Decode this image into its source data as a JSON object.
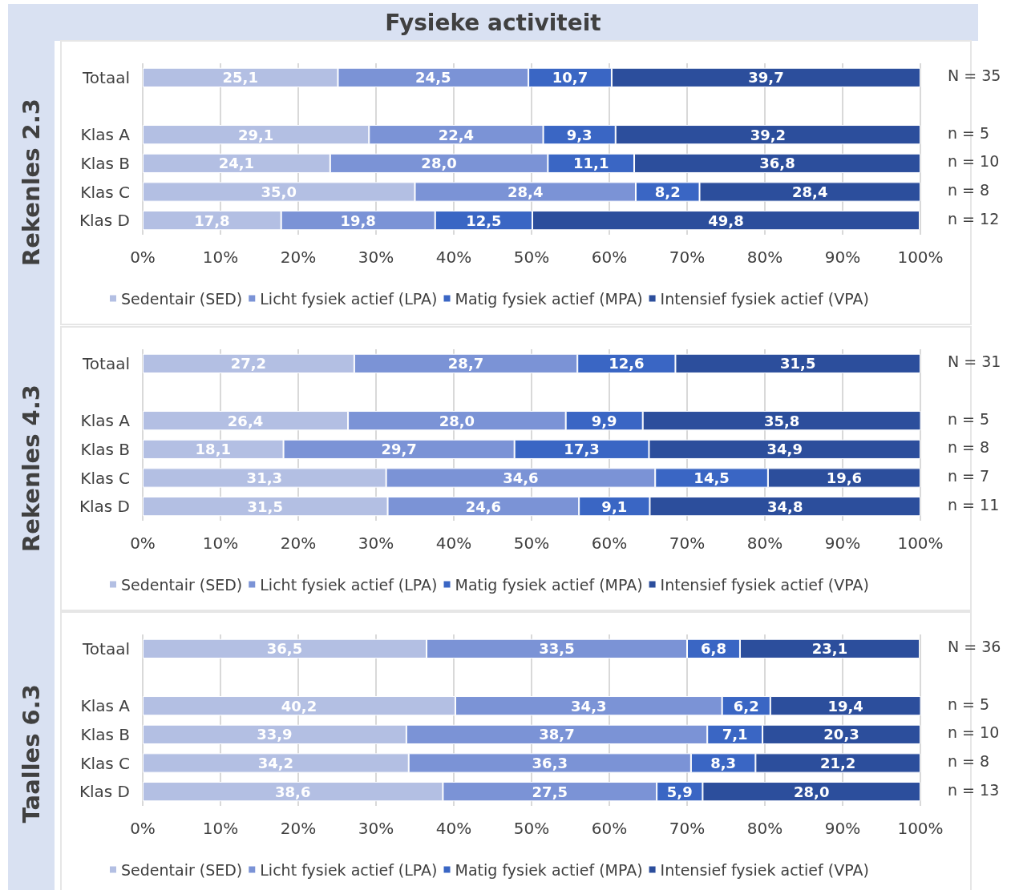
{
  "chart_data": [
    {
      "type": "bar",
      "orientation": "horizontal",
      "stacked": true,
      "title": "Fysieke activiteit",
      "ylabel": "Rekenles 2.3",
      "categories": [
        "Totaal",
        null,
        "Klas A",
        "Klas B",
        "Klas C",
        "Klas D"
      ],
      "series": [
        {
          "name": "Sedentair (SED)",
          "color": "#b3bfe3",
          "values": [
            25.1,
            null,
            29.1,
            24.1,
            35.0,
            17.8
          ],
          "value_labels": [
            "25,1",
            null,
            "29,1",
            "24,1",
            "35,0",
            "17,8"
          ]
        },
        {
          "name": "Licht fysiek actief (LPA)",
          "color": "#7b93d6",
          "values": [
            24.5,
            null,
            22.4,
            28.0,
            28.4,
            19.8
          ],
          "value_labels": [
            "24,5",
            null,
            "22,4",
            "28,0",
            "28,4",
            "19,8"
          ]
        },
        {
          "name": "Matig fysiek actief (MPA)",
          "color": "#3a66c4",
          "values": [
            10.7,
            null,
            9.3,
            11.1,
            8.2,
            12.5
          ],
          "value_labels": [
            "10,7",
            null,
            "9,3",
            "11,1",
            "8,2",
            "12,5"
          ]
        },
        {
          "name": "Intensief fysiek actief (VPA)",
          "color": "#2c4e9c",
          "values": [
            39.7,
            null,
            39.2,
            36.8,
            28.4,
            49.8
          ],
          "value_labels": [
            "39,7",
            null,
            "39,2",
            "36,8",
            "28,4",
            "49,8"
          ]
        }
      ],
      "xlim": [
        0,
        100
      ],
      "xticks": [
        {
          "value": 0,
          "label": "0%"
        },
        {
          "value": 10,
          "label": "10%"
        },
        {
          "value": 20,
          "label": "20%"
        },
        {
          "value": 30,
          "label": "30%"
        },
        {
          "value": 40,
          "label": "40%"
        },
        {
          "value": 50,
          "label": "50%"
        },
        {
          "value": 60,
          "label": "60%"
        },
        {
          "value": 70,
          "label": "70%"
        },
        {
          "value": 80,
          "label": "80%"
        },
        {
          "value": 90,
          "label": "90%"
        },
        {
          "value": 100,
          "label": "100%"
        }
      ],
      "grid": "x",
      "legend": "bottom",
      "annotations": [
        "N = 35",
        "n = 5",
        "n = 10",
        "n = 8",
        "n = 12"
      ]
    },
    {
      "type": "bar",
      "orientation": "horizontal",
      "stacked": true,
      "ylabel": "Rekenles 4.3",
      "categories": [
        "Totaal",
        null,
        "Klas A",
        "Klas B",
        "Klas C",
        "Klas D"
      ],
      "series": [
        {
          "name": "Sedentair (SED)",
          "color": "#b3bfe3",
          "values": [
            27.2,
            null,
            26.4,
            18.1,
            31.3,
            31.5
          ],
          "value_labels": [
            "27,2",
            null,
            "26,4",
            "18,1",
            "31,3",
            "31,5"
          ]
        },
        {
          "name": "Licht fysiek actief (LPA)",
          "color": "#7b93d6",
          "values": [
            28.7,
            null,
            28.0,
            29.7,
            34.6,
            24.6
          ],
          "value_labels": [
            "28,7",
            null,
            "28,0",
            "29,7",
            "34,6",
            "24,6"
          ]
        },
        {
          "name": "Matig fysiek actief (MPA)",
          "color": "#3a66c4",
          "values": [
            12.6,
            null,
            9.9,
            17.3,
            14.5,
            9.1
          ],
          "value_labels": [
            "12,6",
            null,
            "9,9",
            "17,3",
            "14,5",
            "9,1"
          ]
        },
        {
          "name": "Intensief fysiek actief (VPA)",
          "color": "#2c4e9c",
          "values": [
            31.5,
            null,
            35.8,
            34.9,
            19.6,
            34.8
          ],
          "value_labels": [
            "31,5",
            null,
            "35,8",
            "34,9",
            "19,6",
            "34,8"
          ]
        }
      ],
      "xlim": [
        0,
        100
      ],
      "xticks": [
        {
          "value": 0,
          "label": "0%"
        },
        {
          "value": 10,
          "label": "10%"
        },
        {
          "value": 20,
          "label": "20%"
        },
        {
          "value": 30,
          "label": "30%"
        },
        {
          "value": 40,
          "label": "40%"
        },
        {
          "value": 50,
          "label": "50%"
        },
        {
          "value": 60,
          "label": "60%"
        },
        {
          "value": 70,
          "label": "70%"
        },
        {
          "value": 80,
          "label": "80%"
        },
        {
          "value": 90,
          "label": "90%"
        },
        {
          "value": 100,
          "label": "100%"
        }
      ],
      "grid": "x",
      "legend": "bottom",
      "annotations": [
        "N = 31",
        "n = 5",
        "n = 8",
        "n = 7",
        "n = 11"
      ]
    },
    {
      "type": "bar",
      "orientation": "horizontal",
      "stacked": true,
      "ylabel": "Taalles 6.3",
      "categories": [
        "Totaal",
        null,
        "Klas A",
        "Klas B",
        "Klas C",
        "Klas D"
      ],
      "series": [
        {
          "name": "Sedentair (SED)",
          "color": "#b3bfe3",
          "values": [
            36.5,
            null,
            40.2,
            33.9,
            34.2,
            38.6
          ],
          "value_labels": [
            "36,5",
            null,
            "40,2",
            "33,9",
            "34,2",
            "38,6"
          ]
        },
        {
          "name": "Licht fysiek actief (LPA)",
          "color": "#7b93d6",
          "values": [
            33.5,
            null,
            34.3,
            38.7,
            36.3,
            27.5
          ],
          "value_labels": [
            "33,5",
            null,
            "34,3",
            "38,7",
            "36,3",
            "27,5"
          ]
        },
        {
          "name": "Matig fysiek actief (MPA)",
          "color": "#3a66c4",
          "values": [
            6.8,
            null,
            6.2,
            7.1,
            8.3,
            5.9
          ],
          "value_labels": [
            "6,8",
            null,
            "6,2",
            "7,1",
            "8,3",
            "5,9"
          ]
        },
        {
          "name": "Intensief fysiek actief (VPA)",
          "color": "#2c4e9c",
          "values": [
            23.1,
            null,
            19.4,
            20.3,
            21.2,
            28.0
          ],
          "value_labels": [
            "23,1",
            null,
            "19,4",
            "20,3",
            "21,2",
            "28,0"
          ]
        }
      ],
      "xlim": [
        0,
        100
      ],
      "xticks": [
        {
          "value": 0,
          "label": "0%"
        },
        {
          "value": 10,
          "label": "10%"
        },
        {
          "value": 20,
          "label": "20%"
        },
        {
          "value": 30,
          "label": "30%"
        },
        {
          "value": 40,
          "label": "40%"
        },
        {
          "value": 50,
          "label": "50%"
        },
        {
          "value": 60,
          "label": "60%"
        },
        {
          "value": 70,
          "label": "70%"
        },
        {
          "value": 80,
          "label": "80%"
        },
        {
          "value": 90,
          "label": "90%"
        },
        {
          "value": 100,
          "label": "100%"
        }
      ],
      "grid": "x",
      "legend": "bottom",
      "annotations": [
        "N = 36",
        "n = 5",
        "n = 10",
        "n = 8",
        "n = 13"
      ]
    }
  ]
}
